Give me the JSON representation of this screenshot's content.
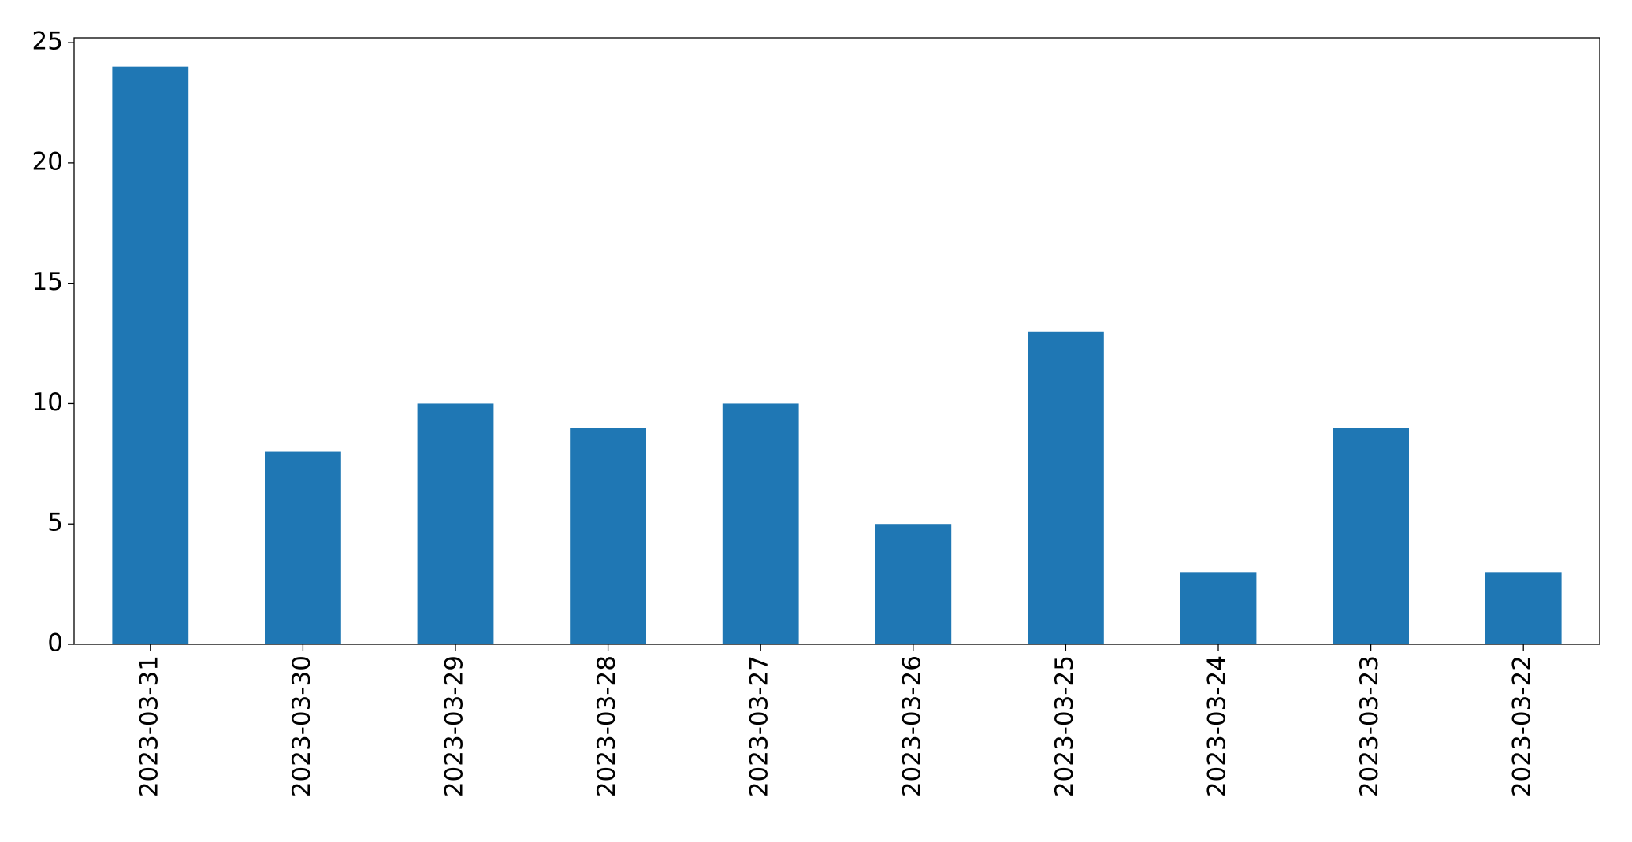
{
  "chart_data": {
    "type": "bar",
    "categories": [
      "2023-03-31",
      "2023-03-30",
      "2023-03-29",
      "2023-03-28",
      "2023-03-27",
      "2023-03-26",
      "2023-03-25",
      "2023-03-24",
      "2023-03-23",
      "2023-03-22"
    ],
    "values": [
      24,
      8,
      10,
      9,
      10,
      5,
      13,
      3,
      9,
      3
    ],
    "color": "#1f77b4",
    "ylim": [
      0,
      25.2
    ],
    "yticks": [
      0,
      5,
      10,
      15,
      20,
      25
    ],
    "grid": false
  }
}
